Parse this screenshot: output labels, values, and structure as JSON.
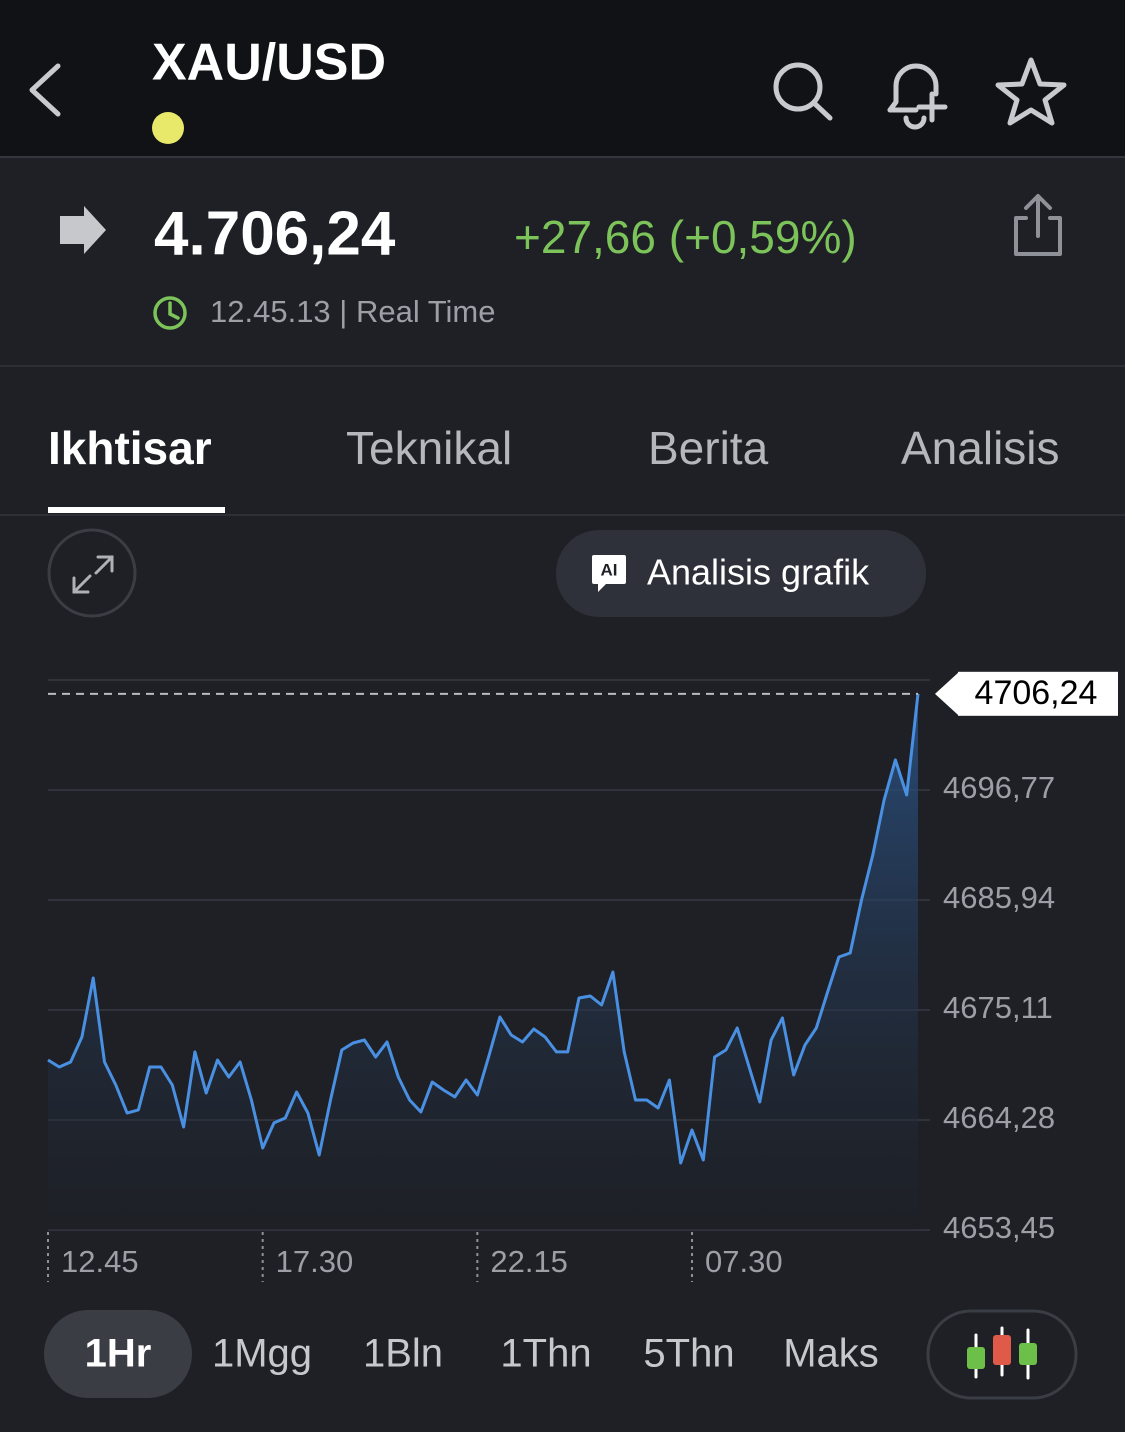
{
  "header": {
    "title": "XAU/USD"
  },
  "quote": {
    "price": "4.706,24",
    "change": "+27,66 (+0,59%)",
    "time": "12.45.13 | Real Time"
  },
  "tabs": [
    "Ikhtisar",
    "Teknikal",
    "Berita",
    "Analisis"
  ],
  "chart_toolbar": {
    "ai_badge": "AI",
    "button": "Analisis grafik"
  },
  "chart_data": {
    "type": "line",
    "color": "#4a90e2",
    "fill": true,
    "grid": true,
    "categories": [
      "12.45",
      null,
      null,
      null,
      null,
      null,
      null,
      null,
      null,
      null,
      null,
      null,
      null,
      null,
      null,
      null,
      null,
      null,
      null,
      "17.30",
      null,
      null,
      null,
      null,
      null,
      null,
      null,
      null,
      null,
      null,
      null,
      null,
      null,
      null,
      null,
      null,
      null,
      null,
      "22.15",
      null,
      null,
      null,
      null,
      null,
      null,
      null,
      null,
      null,
      null,
      null,
      null,
      null,
      null,
      null,
      null,
      null,
      null,
      "07.30",
      null,
      null,
      null,
      null,
      null,
      null,
      null,
      null,
      null,
      null,
      null,
      null,
      null,
      null,
      null,
      null,
      null,
      null,
      null,
      null
    ],
    "values": [
      4670.19,
      4669.5,
      4669.99,
      4672.45,
      4678.26,
      4669.99,
      4667.73,
      4664.97,
      4665.27,
      4669.5,
      4669.5,
      4667.73,
      4663.59,
      4670.98,
      4666.94,
      4670.19,
      4668.51,
      4669.99,
      4666.25,
      4661.52,
      4663.99,
      4664.48,
      4667.04,
      4664.97,
      4660.83,
      4666.25,
      4671.17,
      4671.86,
      4672.16,
      4670.48,
      4671.96,
      4668.51,
      4666.25,
      4665.07,
      4668.02,
      4667.23,
      4666.55,
      4668.22,
      4666.74,
      4670.48,
      4674.42,
      4672.65,
      4671.96,
      4673.24,
      4672.45,
      4670.98,
      4670.98,
      4676.29,
      4676.49,
      4675.6,
      4678.85,
      4670.98,
      4666.25,
      4666.25,
      4665.46,
      4668.22,
      4660.05,
      4663.3,
      4660.34,
      4670.48,
      4671.17,
      4673.34,
      4669.7,
      4666.05,
      4672.16,
      4674.32,
      4668.71,
      4671.67,
      4673.34,
      4676.88,
      4680.33,
      4680.72,
      4685.94,
      4690.37,
      4695.79,
      4699.73,
      4696.28,
      4706.24
    ],
    "ylim": [
      4653.45,
      4707.6
    ],
    "yticks": [
      {
        "value": 4653.45,
        "label": "4653,45"
      },
      {
        "value": 4664.28,
        "label": "4664,28"
      },
      {
        "value": 4675.11,
        "label": "4675,11"
      },
      {
        "value": 4685.94,
        "label": "4685,94"
      },
      {
        "value": 4696.77,
        "label": "4696,77"
      }
    ],
    "current_price": {
      "value": 4706.24,
      "label": "4706,24"
    }
  },
  "periods": [
    "1Hr",
    "1Mgg",
    "1Bln",
    "1Thn",
    "5Thn",
    "Maks"
  ]
}
